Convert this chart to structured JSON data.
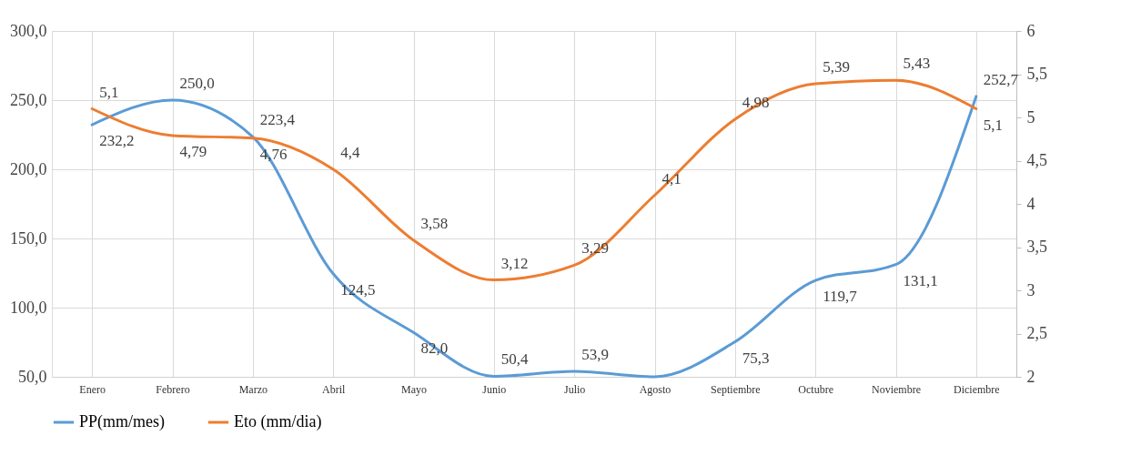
{
  "chart_data": {
    "type": "line",
    "categories": [
      "Enero",
      "Febrero",
      "Marzo",
      "Abril",
      "Mayo",
      "Junio",
      "Julio",
      "Agosto",
      "Septiembre",
      "Octubre",
      "Noviembre",
      "Diciembre"
    ],
    "series": [
      {
        "name": "PP(mm/mes)",
        "color": "#5b9bd5",
        "values": [
          232.2,
          250.0,
          223.4,
          124.5,
          82.0,
          50.4,
          53.9,
          50.0,
          75.3,
          119.7,
          131.1,
          252.7
        ],
        "value_labels": [
          "232,2",
          "250,0",
          "223,4",
          "124,5",
          "82,0",
          "50,4",
          "53,9",
          null,
          "75,3",
          "119,7",
          "131,1",
          "252,7"
        ]
      },
      {
        "name": "Eto (mm/dia)",
        "color": "#ed7d31",
        "axis": "y2",
        "values": [
          5.1,
          4.79,
          4.76,
          4.4,
          3.58,
          3.12,
          3.29,
          4.1,
          4.98,
          5.39,
          5.43,
          5.1
        ],
        "value_labels": [
          "5,1",
          "4,79",
          "4,76",
          "4,4",
          "3,58",
          "3,12",
          "3,29",
          "4,1",
          "4,98",
          "5,39",
          "5,43",
          "5,1"
        ]
      }
    ],
    "ylim": [
      50,
      300
    ],
    "yticks": [
      {
        "value": 50,
        "label": "50,0"
      },
      {
        "value": 100,
        "label": "100,0"
      },
      {
        "value": 150,
        "label": "150,0"
      },
      {
        "value": 200,
        "label": "200,0"
      },
      {
        "value": 250,
        "label": "250,0"
      },
      {
        "value": 300,
        "label": "300,0"
      }
    ],
    "y2lim": [
      2,
      6
    ],
    "y2ticks": [
      2,
      {
        "value": 2.5,
        "label": "2,5"
      },
      3,
      {
        "value": 3.5,
        "label": "3,5"
      },
      4,
      {
        "value": 4.5,
        "label": "4,5"
      },
      5,
      {
        "value": 5.5,
        "label": "5,5"
      },
      6
    ],
    "grid": true,
    "legend": "bottom",
    "line_style": "solid",
    "marker": "none"
  }
}
